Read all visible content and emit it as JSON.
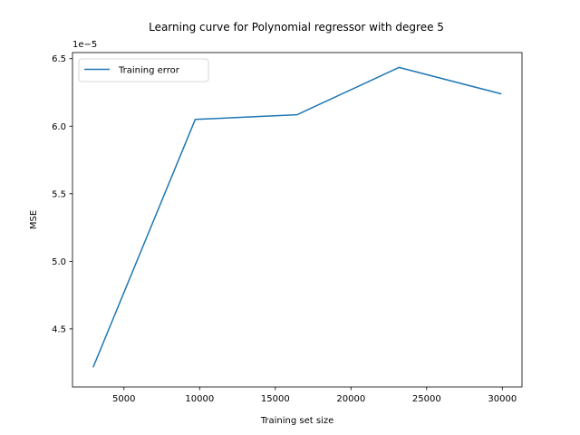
{
  "chart_data": {
    "type": "line",
    "title": "Learning curve for Polynomial regressor with degree 5",
    "xlabel": "Training set size",
    "ylabel": "MSE",
    "y_offset_label": "1e−5",
    "xlim": [
      1600,
      31300
    ],
    "ylim": [
      4.07,
      6.545
    ],
    "x_ticks": [
      5000,
      10000,
      15000,
      20000,
      25000,
      30000
    ],
    "x_tick_labels": [
      "5000",
      "10000",
      "15000",
      "20000",
      "25000",
      "30000"
    ],
    "y_ticks": [
      4.5,
      5.0,
      5.5,
      6.0,
      6.5
    ],
    "y_tick_labels": [
      "4.5",
      "5.0",
      "5.5",
      "6.0",
      "6.5"
    ],
    "grid": false,
    "legend_position": "upper-left",
    "series": [
      {
        "name": "Training error",
        "color": "#1f77b4",
        "x": [
          2980,
          9710,
          16440,
          23170,
          29900
        ],
        "y": [
          4.22,
          6.05,
          6.085,
          6.435,
          6.24
        ]
      }
    ]
  }
}
